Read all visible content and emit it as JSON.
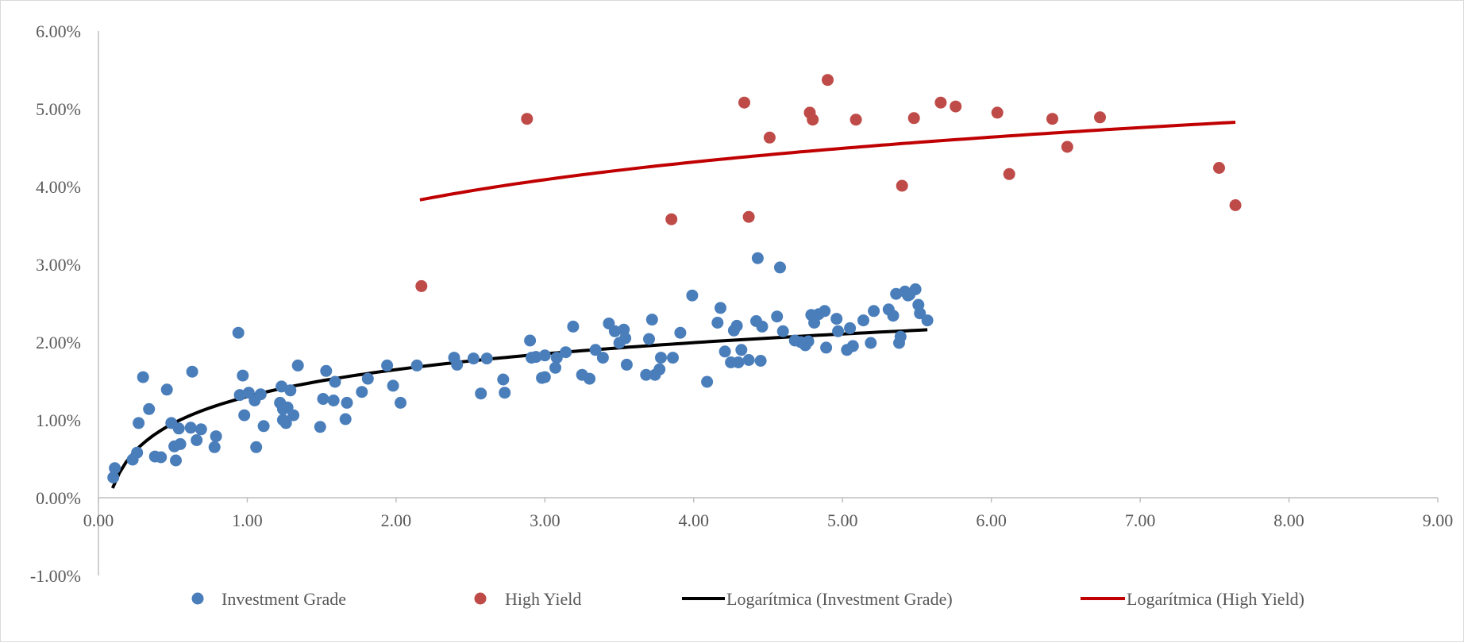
{
  "chart_data": {
    "type": "scatter",
    "title": "",
    "xlabel": "",
    "ylabel": "",
    "xlim": [
      0,
      9
    ],
    "ylim": [
      -0.01,
      0.06
    ],
    "x_ticks": [
      0,
      1,
      2,
      3,
      4,
      5,
      6,
      7,
      8,
      9
    ],
    "x_tick_labels": [
      "0.00",
      "1.00",
      "2.00",
      "3.00",
      "4.00",
      "5.00",
      "6.00",
      "7.00",
      "8.00",
      "9.00"
    ],
    "y_ticks": [
      -0.01,
      0,
      0.01,
      0.02,
      0.03,
      0.04,
      0.05,
      0.06
    ],
    "y_tick_labels": [
      "-1.00%",
      "0.00%",
      "1.00%",
      "2.00%",
      "3.00%",
      "4.00%",
      "5.00%",
      "6.00%"
    ],
    "grid": false,
    "legend_position": "bottom",
    "colors": {
      "investment_grade": "#4a7ebb",
      "high_yield": "#be4b48",
      "trend_investment_grade": "#000000",
      "trend_high_yield": "#c00000",
      "axis": "#bfbfbf"
    },
    "series": [
      {
        "name": "Investment Grade",
        "kind": "scatter",
        "points": [
          [
            0.1,
            0.0026
          ],
          [
            0.11,
            0.0038
          ],
          [
            0.23,
            0.0049
          ],
          [
            0.26,
            0.0058
          ],
          [
            0.27,
            0.0096
          ],
          [
            0.3,
            0.0155
          ],
          [
            0.34,
            0.0114
          ],
          [
            0.38,
            0.0053
          ],
          [
            0.42,
            0.0052
          ],
          [
            0.46,
            0.0139
          ],
          [
            0.49,
            0.0096
          ],
          [
            0.51,
            0.0066
          ],
          [
            0.52,
            0.0048
          ],
          [
            0.54,
            0.0089
          ],
          [
            0.55,
            0.0069
          ],
          [
            0.62,
            0.009
          ],
          [
            0.63,
            0.0162
          ],
          [
            0.66,
            0.0074
          ],
          [
            0.69,
            0.0088
          ],
          [
            0.78,
            0.0065
          ],
          [
            0.79,
            0.0079
          ],
          [
            0.94,
            0.0212
          ],
          [
            0.95,
            0.0132
          ],
          [
            0.97,
            0.0157
          ],
          [
            0.98,
            0.0106
          ],
          [
            1.01,
            0.0135
          ],
          [
            1.05,
            0.0125
          ],
          [
            1.06,
            0.0065
          ],
          [
            1.09,
            0.0133
          ],
          [
            1.11,
            0.0092
          ],
          [
            1.22,
            0.0122
          ],
          [
            1.23,
            0.0143
          ],
          [
            1.24,
            0.0114
          ],
          [
            1.24,
            0.01
          ],
          [
            1.26,
            0.0096
          ],
          [
            1.27,
            0.0116
          ],
          [
            1.29,
            0.0138
          ],
          [
            1.31,
            0.0106
          ],
          [
            1.34,
            0.017
          ],
          [
            1.49,
            0.0091
          ],
          [
            1.51,
            0.0127
          ],
          [
            1.53,
            0.0163
          ],
          [
            1.58,
            0.0125
          ],
          [
            1.59,
            0.0149
          ],
          [
            1.66,
            0.0101
          ],
          [
            1.67,
            0.0122
          ],
          [
            1.77,
            0.0136
          ],
          [
            1.81,
            0.0153
          ],
          [
            1.94,
            0.017
          ],
          [
            1.98,
            0.0144
          ],
          [
            2.03,
            0.0122
          ],
          [
            2.14,
            0.017
          ],
          [
            2.39,
            0.018
          ],
          [
            2.41,
            0.0171
          ],
          [
            2.52,
            0.0179
          ],
          [
            2.57,
            0.0134
          ],
          [
            2.61,
            0.0179
          ],
          [
            2.72,
            0.0152
          ],
          [
            2.73,
            0.0135
          ],
          [
            2.9,
            0.0202
          ],
          [
            2.91,
            0.018
          ],
          [
            2.94,
            0.0181
          ],
          [
            2.98,
            0.0154
          ],
          [
            3.0,
            0.0155
          ],
          [
            3.0,
            0.0183
          ],
          [
            3.07,
            0.0167
          ],
          [
            3.08,
            0.018
          ],
          [
            3.14,
            0.0187
          ],
          [
            3.19,
            0.022
          ],
          [
            3.25,
            0.0158
          ],
          [
            3.3,
            0.0153
          ],
          [
            3.34,
            0.019
          ],
          [
            3.39,
            0.018
          ],
          [
            3.43,
            0.0224
          ],
          [
            3.47,
            0.0214
          ],
          [
            3.5,
            0.0199
          ],
          [
            3.53,
            0.0216
          ],
          [
            3.54,
            0.0205
          ],
          [
            3.55,
            0.0171
          ],
          [
            3.68,
            0.0158
          ],
          [
            3.7,
            0.0204
          ],
          [
            3.72,
            0.0229
          ],
          [
            3.74,
            0.0158
          ],
          [
            3.77,
            0.0165
          ],
          [
            3.78,
            0.018
          ],
          [
            3.86,
            0.018
          ],
          [
            3.91,
            0.0212
          ],
          [
            3.99,
            0.026
          ],
          [
            4.09,
            0.0149
          ],
          [
            4.16,
            0.0225
          ],
          [
            4.18,
            0.0244
          ],
          [
            4.21,
            0.0188
          ],
          [
            4.25,
            0.0174
          ],
          [
            4.27,
            0.0215
          ],
          [
            4.29,
            0.0221
          ],
          [
            4.3,
            0.0174
          ],
          [
            4.32,
            0.019
          ],
          [
            4.37,
            0.0177
          ],
          [
            4.42,
            0.0227
          ],
          [
            4.43,
            0.0308
          ],
          [
            4.45,
            0.0176
          ],
          [
            4.46,
            0.022
          ],
          [
            4.56,
            0.0233
          ],
          [
            4.58,
            0.0296
          ],
          [
            4.6,
            0.0214
          ],
          [
            4.68,
            0.0202
          ],
          [
            4.72,
            0.02
          ],
          [
            4.75,
            0.0196
          ],
          [
            4.77,
            0.0201
          ],
          [
            4.79,
            0.0235
          ],
          [
            4.81,
            0.0225
          ],
          [
            4.84,
            0.0236
          ],
          [
            4.88,
            0.024
          ],
          [
            4.89,
            0.0193
          ],
          [
            4.96,
            0.023
          ],
          [
            4.97,
            0.0214
          ],
          [
            5.03,
            0.019
          ],
          [
            5.05,
            0.0218
          ],
          [
            5.07,
            0.0195
          ],
          [
            5.14,
            0.0228
          ],
          [
            5.19,
            0.0199
          ],
          [
            5.21,
            0.024
          ],
          [
            5.31,
            0.0242
          ],
          [
            5.34,
            0.0234
          ],
          [
            5.36,
            0.0262
          ],
          [
            5.38,
            0.0199
          ],
          [
            5.39,
            0.0207
          ],
          [
            5.42,
            0.0265
          ],
          [
            5.44,
            0.026
          ],
          [
            5.45,
            0.0261
          ],
          [
            5.49,
            0.0268
          ],
          [
            5.51,
            0.0248
          ],
          [
            5.52,
            0.0237
          ],
          [
            5.57,
            0.0228
          ]
        ]
      },
      {
        "name": "High Yield",
        "kind": "scatter",
        "points": [
          [
            2.17,
            0.0272
          ],
          [
            2.88,
            0.0487
          ],
          [
            3.85,
            0.0358
          ],
          [
            4.34,
            0.0508
          ],
          [
            4.37,
            0.0361
          ],
          [
            4.51,
            0.0463
          ],
          [
            4.78,
            0.0495
          ],
          [
            4.8,
            0.0486
          ],
          [
            4.9,
            0.0537
          ],
          [
            5.09,
            0.0486
          ],
          [
            5.4,
            0.0401
          ],
          [
            5.48,
            0.0488
          ],
          [
            5.66,
            0.0508
          ],
          [
            5.76,
            0.0503
          ],
          [
            6.04,
            0.0495
          ],
          [
            6.12,
            0.0416
          ],
          [
            6.41,
            0.0487
          ],
          [
            6.51,
            0.0451
          ],
          [
            6.73,
            0.0489
          ],
          [
            7.53,
            0.0424
          ],
          [
            7.64,
            0.0376
          ]
        ]
      },
      {
        "name": "Logarítmica (Investment Grade)",
        "kind": "trendline",
        "fit": {
          "form": "a*ln(x)+b",
          "a": 0.005,
          "b": 0.013
        },
        "x_range": [
          0.095,
          5.57
        ]
      },
      {
        "name": "Logarítmica (High Yield)",
        "kind": "trendline",
        "fit": {
          "form": "a*ln(x)+b",
          "a": 0.0079,
          "b": 0.0322
        },
        "x_range": [
          2.16,
          7.64
        ]
      }
    ]
  }
}
